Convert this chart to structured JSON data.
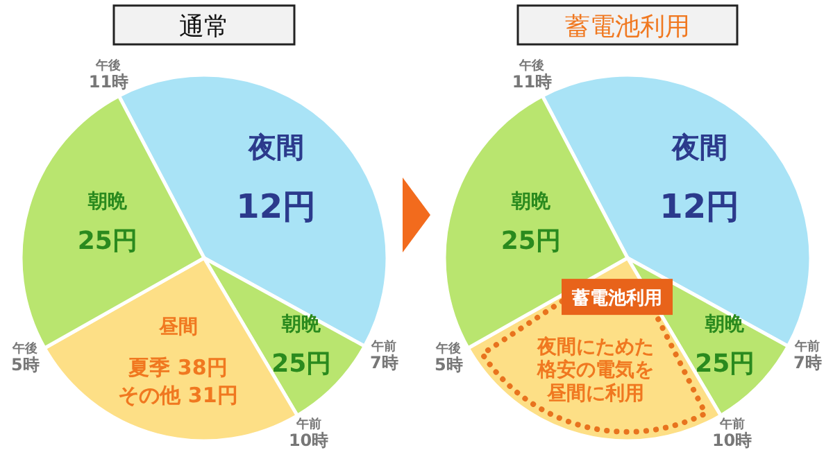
{
  "chart_data": [
    {
      "type": "pie",
      "title": "通常",
      "categories": [
        "夜間",
        "朝晩",
        "昼間",
        "朝晩"
      ],
      "values": [
        40.7,
        8.5,
        25.3,
        25.5
      ],
      "colors": [
        "#a9e3f6",
        "#b9e56f",
        "#fddf86",
        "#b9e56f"
      ],
      "annotations": [
        "午後11時",
        "午前7時",
        "午前10時",
        "午後5時",
        "12円",
        "25円",
        "夏季 38円",
        "その他 31円",
        "25円"
      ]
    },
    {
      "type": "pie",
      "title": "蓄電池利用",
      "categories": [
        "夜間",
        "朝晩",
        null,
        "朝晩"
      ],
      "values": [
        40.7,
        8.5,
        25.3,
        25.5
      ],
      "colors": [
        "#a9e3f6",
        "#b9e56f",
        "#fddf86",
        "#b9e56f"
      ],
      "annotations": [
        "午後11時",
        "午前7時",
        "午前10時",
        "午後5時",
        "12円",
        "25円",
        "25円",
        "蓄電池利用",
        "夜間にためた格安の電気を昼間に利用"
      ]
    }
  ]
}
